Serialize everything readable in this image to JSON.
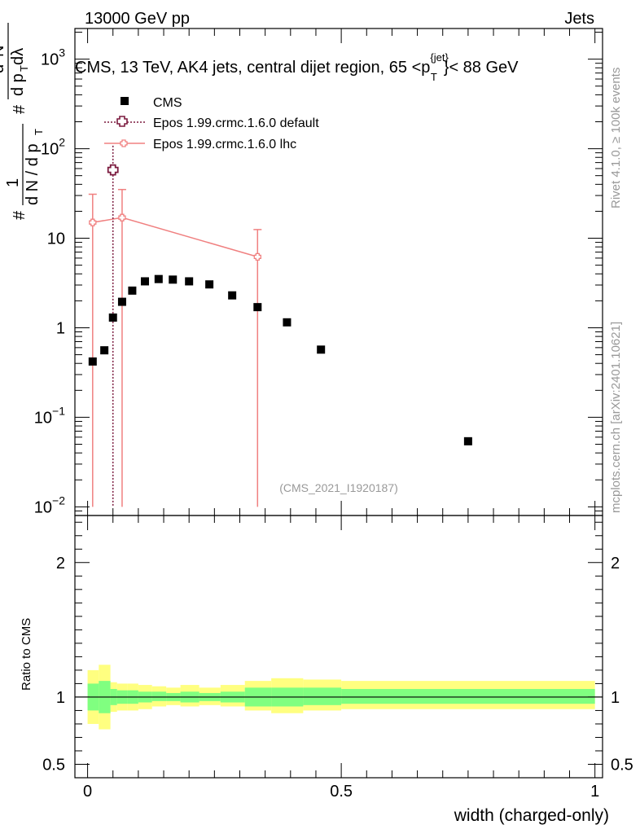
{
  "header": {
    "left": "13000 GeV pp",
    "right": "Jets"
  },
  "title": {
    "prefix": "CMS, 13 TeV, AK4 jets, central dijet region, 65 <p",
    "sup": "{jet}",
    "sub": "T",
    "suffix": "}< 88 GeV"
  },
  "side_text": {
    "rivet": "Rivet 4.1.0, ≥ 100k events",
    "mcplots": "mcplots.cern.ch [arXiv:2401.10621]"
  },
  "analysis_label": "(CMS_2021_I1920187)",
  "ylabel": {
    "hash": "#",
    "one": "1",
    "dN": "d N / d p",
    "dN_sub": "T",
    "num_hash": "#",
    "d2N": "d",
    "d2N_sup": "2",
    "d2N_tail": "N",
    "den": "d p",
    "den_sub": "T",
    "den_tail": " dλ"
  },
  "ratio_ylabel": "Ratio to CMS",
  "xlabel": "width (charged-only)",
  "legend": [
    {
      "label": "CMS",
      "color": "#000000"
    },
    {
      "label": "Epos 1.99.crmc.1.6.0 default",
      "color": "#7b1a3e"
    },
    {
      "label": "Epos 1.99.crmc.1.6.0 lhc",
      "color": "#f08080"
    }
  ],
  "main_y_ticks": [
    {
      "value": 1000,
      "label": "10",
      "sup": "3"
    },
    {
      "value": 100,
      "label": "10",
      "sup": "2"
    },
    {
      "value": 10,
      "label": "10",
      "sup": ""
    },
    {
      "value": 1,
      "label": "1",
      "sup": ""
    },
    {
      "value": 0.1,
      "label": "10",
      "sup": "−1"
    },
    {
      "value": 0.01,
      "label": "10",
      "sup": "−2"
    }
  ],
  "ratio_y_ticks": [
    {
      "value": 2,
      "label": "2"
    },
    {
      "value": 1,
      "label": "1"
    },
    {
      "value": 0.5,
      "label": "0.5"
    }
  ],
  "x_ticks": [
    {
      "value": 0,
      "label": "0"
    },
    {
      "value": 0.5,
      "label": "0.5"
    },
    {
      "value": 1,
      "label": "1"
    }
  ],
  "chart_data": {
    "type": "scatter",
    "xlim": [
      -0.025,
      1.015
    ],
    "ylim": [
      0.008,
      2200
    ],
    "yscale": "log",
    "ratio_ylim": [
      0.4,
      2.35
    ],
    "series": [
      {
        "name": "CMS",
        "x": [
          0.01,
          0.033,
          0.05,
          0.068,
          0.088,
          0.113,
          0.14,
          0.168,
          0.2,
          0.24,
          0.285,
          0.335,
          0.393,
          0.46,
          0.75
        ],
        "y": [
          0.42,
          0.56,
          1.3,
          1.95,
          2.6,
          3.3,
          3.5,
          3.45,
          3.3,
          3.05,
          2.3,
          1.7,
          1.15,
          0.57,
          0.054
        ]
      },
      {
        "name": "Epos 1.99.crmc.1.6.0 default",
        "x": [
          0.05
        ],
        "y": [
          58
        ],
        "yerr_low": [
          57.99
        ],
        "yerr_high": [
          50
        ]
      },
      {
        "name": "Epos 1.99.crmc.1.6.0 lhc",
        "x": [
          0.01,
          0.068,
          0.335
        ],
        "y": [
          15,
          17,
          6.2
        ],
        "yerr_low": [
          14.99,
          16.99,
          6.19
        ],
        "yerr_high": [
          16,
          18,
          6.3
        ]
      }
    ],
    "ratio_bands": {
      "bin_edges": [
        0.0,
        0.022,
        0.045,
        0.058,
        0.078,
        0.1,
        0.127,
        0.155,
        0.183,
        0.22,
        0.262,
        0.31,
        0.362,
        0.425,
        0.5,
        1.0
      ],
      "yellow_low": [
        0.8,
        0.76,
        0.89,
        0.9,
        0.9,
        0.91,
        0.93,
        0.94,
        0.93,
        0.94,
        0.93,
        0.9,
        0.88,
        0.9,
        0.91
      ],
      "yellow_high": [
        1.2,
        1.24,
        1.11,
        1.1,
        1.1,
        1.09,
        1.08,
        1.07,
        1.09,
        1.07,
        1.09,
        1.12,
        1.14,
        1.13,
        1.12
      ],
      "green_low": [
        0.9,
        0.88,
        0.94,
        0.95,
        0.95,
        0.96,
        0.97,
        0.97,
        0.96,
        0.97,
        0.96,
        0.93,
        0.93,
        0.94,
        0.95
      ],
      "green_high": [
        1.1,
        1.12,
        1.06,
        1.05,
        1.05,
        1.04,
        1.04,
        1.03,
        1.04,
        1.03,
        1.04,
        1.07,
        1.07,
        1.07,
        1.06
      ],
      "yellow_color": "#ffff80",
      "green_color": "#80ff80"
    }
  }
}
